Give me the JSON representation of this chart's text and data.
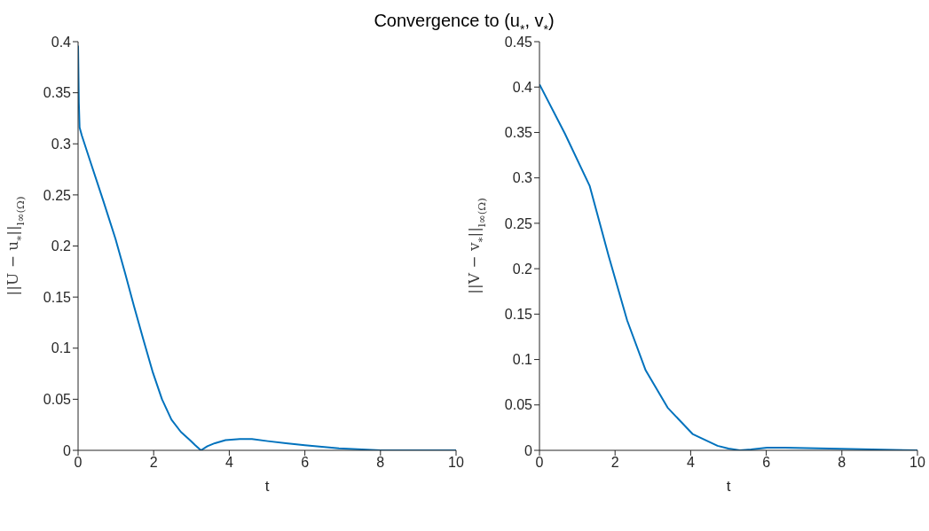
{
  "chart_data": [
    {
      "type": "line",
      "title": "Convergence to (u$_{*}$, v$_{*}$)",
      "xlabel": "t",
      "ylabel": "||U − u$_{*}$||$_{l∞(Ω)}$",
      "x": [
        0,
        0.02,
        0.04,
        0.1,
        0.33,
        0.66,
        0.99,
        1.24,
        1.48,
        1.73,
        1.98,
        2.22,
        2.47,
        2.72,
        2.96,
        3.1,
        3.25,
        3.42,
        3.62,
        3.9,
        4.28,
        4.6,
        5.02,
        5.5,
        6.0,
        6.9,
        8.0,
        9.0,
        10
      ],
      "series": [
        {
          "color": "#0072bd",
          "values": [
            0.396,
            0.34,
            0.316,
            0.308,
            0.282,
            0.245,
            0.207,
            0.174,
            0.141,
            0.108,
            0.076,
            0.05,
            0.03,
            0.018,
            0.01,
            0.005,
            0,
            0.004,
            0.007,
            0.01,
            0.011,
            0.011,
            0.009,
            0.007,
            0.005,
            0.002,
            0,
            0,
            0
          ]
        }
      ],
      "xlim": [
        0,
        10
      ],
      "xticks": [
        0,
        2,
        4,
        6,
        8,
        10
      ],
      "ylim": [
        0,
        0.4
      ],
      "yticks": [
        0,
        0.05,
        0.1,
        0.15,
        0.2,
        0.25,
        0.3,
        0.35,
        0.4
      ]
    },
    {
      "type": "line",
      "xlabel": "t",
      "ylabel": "||V − v$_{*}$||$_{l∞(Ω)}$",
      "x": [
        0,
        0.67,
        1.33,
        1.83,
        2.32,
        2.81,
        3.39,
        4.05,
        4.71,
        5.0,
        5.3,
        5.6,
        6.02,
        6.5,
        7.67,
        8.8,
        10
      ],
      "series": [
        {
          "color": "#0072bd",
          "values": [
            0.403,
            0.349,
            0.291,
            0.214,
            0.143,
            0.088,
            0.047,
            0.018,
            0.005,
            0.002,
            0,
            0.001,
            0.003,
            0.003,
            0.002,
            0.001,
            0
          ]
        }
      ],
      "xlim": [
        0,
        10
      ],
      "xticks": [
        0,
        2,
        4,
        6,
        8,
        10
      ],
      "ylim": [
        0,
        0.45
      ],
      "yticks": [
        0,
        0.05,
        0.1,
        0.15,
        0.2,
        0.25,
        0.3,
        0.35,
        0.4,
        0.45
      ]
    }
  ]
}
